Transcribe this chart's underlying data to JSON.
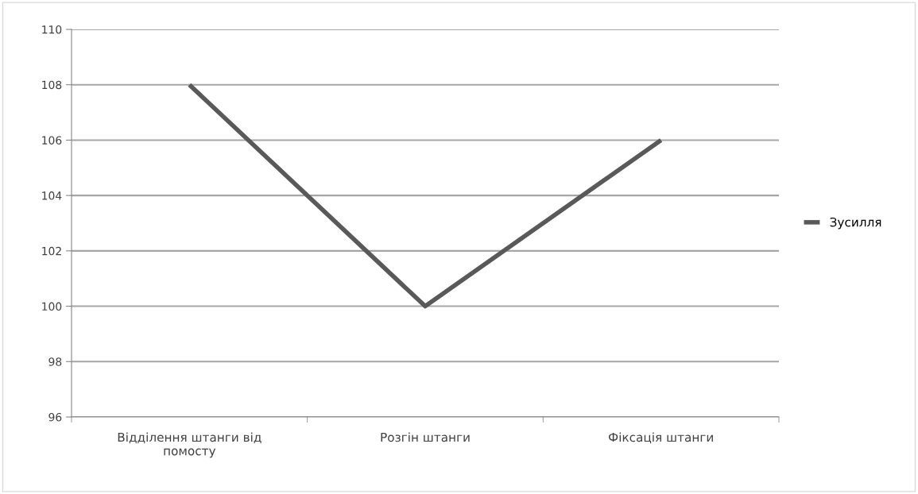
{
  "chart_data": {
    "type": "line",
    "categories": [
      "Відділення штанги від помосту",
      "Розгін штанги",
      "Фіксація штанги"
    ],
    "series": [
      {
        "name": "Зусилля",
        "color": "#595959",
        "values": [
          108,
          100,
          106
        ]
      }
    ],
    "ylim": [
      96,
      110
    ],
    "yticks": [
      96,
      98,
      100,
      102,
      104,
      106,
      108,
      110
    ],
    "grid": "y",
    "legend": "right",
    "marker": "none",
    "line_style": "solid"
  }
}
